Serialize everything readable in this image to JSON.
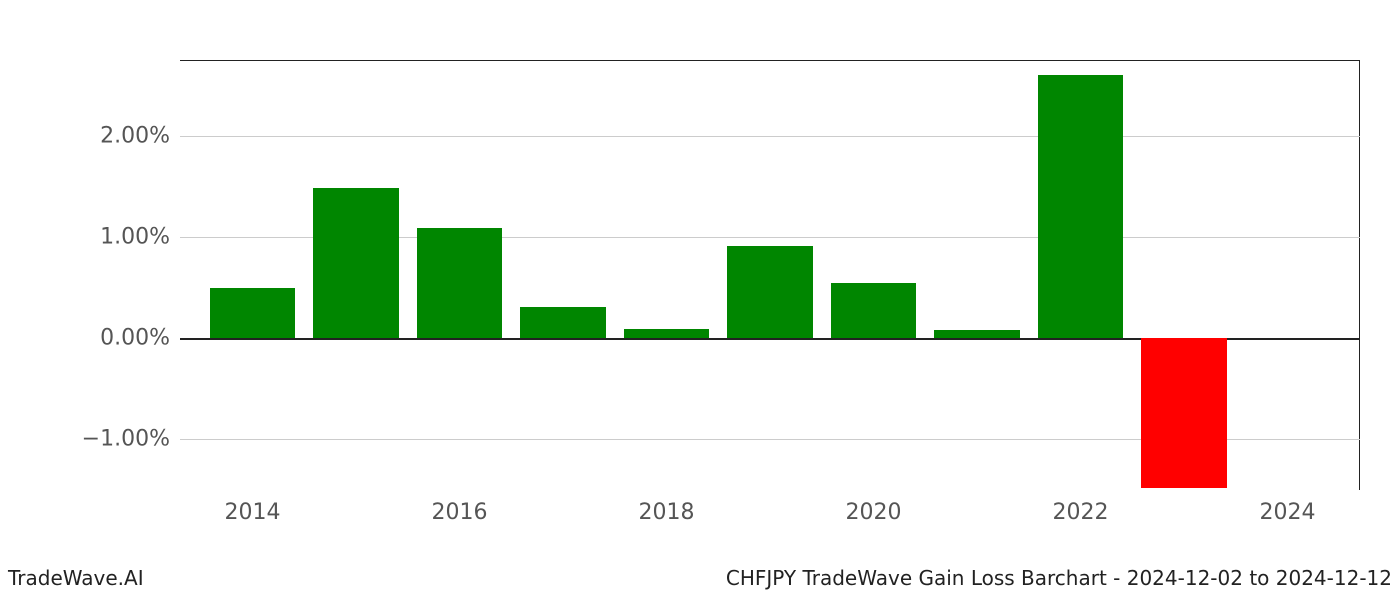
{
  "chart": {
    "type": "bar",
    "years": [
      2014,
      2015,
      2016,
      2017,
      2018,
      2019,
      2020,
      2021,
      2022,
      2023
    ],
    "values": [
      0.5,
      1.48,
      1.09,
      0.31,
      0.09,
      0.91,
      0.55,
      0.08,
      2.6,
      -1.48
    ],
    "positive_color": "#008600",
    "negative_color": "#ff0000",
    "background_color": "#ffffff",
    "grid_color": "#cccccc",
    "axis_color": "#222222",
    "ylim": [
      -1.5,
      2.75
    ],
    "ytick_values": [
      -1.0,
      0.0,
      1.0,
      2.0
    ],
    "ytick_labels": [
      "−1.00%",
      "0.00%",
      "1.00%",
      "2.00%"
    ],
    "xtick_values": [
      2014,
      2016,
      2018,
      2020,
      2022,
      2024
    ],
    "xtick_labels": [
      "2014",
      "2016",
      "2018",
      "2020",
      "2022",
      "2024"
    ],
    "xlim": [
      2013.3,
      2024.7
    ],
    "bar_width_years": 0.83,
    "tick_fontsize": 22,
    "tick_color": "#555555",
    "footer_fontsize": 20,
    "footer_color": "#222222"
  },
  "footer": {
    "left": "TradeWave.AI",
    "right": "CHFJPY TradeWave Gain Loss Barchart - 2024-12-02 to 2024-12-12"
  }
}
